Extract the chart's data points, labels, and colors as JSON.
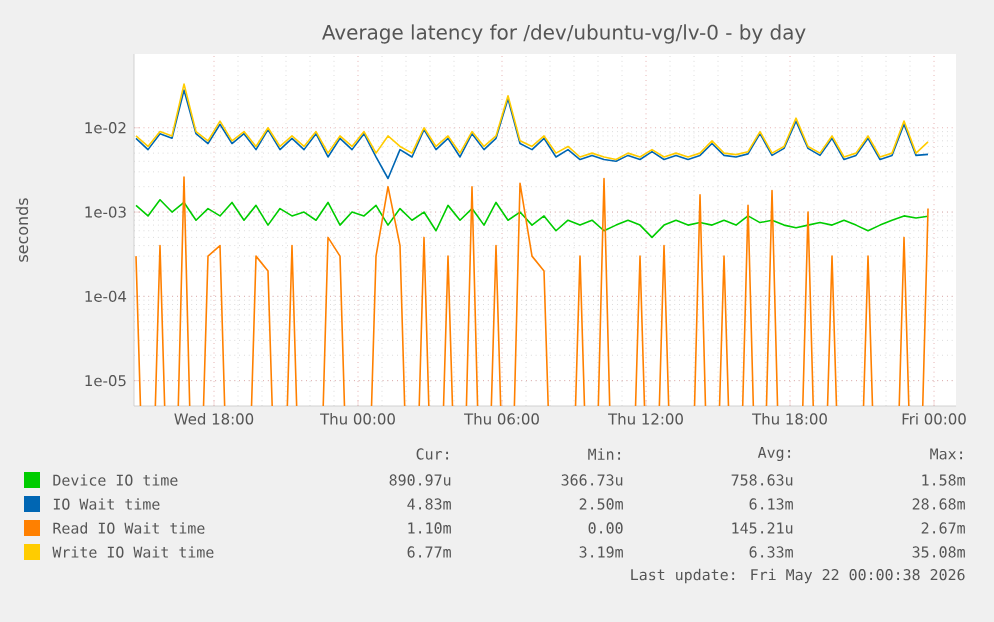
{
  "chart_data": {
    "type": "line",
    "title": "Average latency for /dev/ubuntu-vg/lv-0 - by day",
    "ylabel": "seconds",
    "log": "y",
    "grid": true,
    "legend": "bottom",
    "xlim": [
      "2026-05-20T14:40",
      "2026-05-22T00:55"
    ],
    "ylim": [
      5e-06,
      0.075
    ],
    "xticks": [
      {
        "value": "2026-05-20T18:00",
        "label": "Wed 18:00"
      },
      {
        "value": "2026-05-21T00:00",
        "label": "Thu 00:00"
      },
      {
        "value": "2026-05-21T06:00",
        "label": "Thu 06:00"
      },
      {
        "value": "2026-05-21T12:00",
        "label": "Thu 12:00"
      },
      {
        "value": "2026-05-21T18:00",
        "label": "Thu 18:00"
      },
      {
        "value": "2026-05-22T00:00",
        "label": "Fri 00:00"
      }
    ],
    "yticks": [
      {
        "value": 1e-05,
        "label": "1e-05"
      },
      {
        "value": 0.0001,
        "label": "1e-04"
      },
      {
        "value": 0.001,
        "label": "1e-03"
      },
      {
        "value": 0.01,
        "label": "1e-02"
      }
    ],
    "x": [
      "2026-05-20T14:45",
      "2026-05-20T15:15",
      "2026-05-20T15:45",
      "2026-05-20T16:15",
      "2026-05-20T16:45",
      "2026-05-20T17:15",
      "2026-05-20T17:45",
      "2026-05-20T18:15",
      "2026-05-20T18:45",
      "2026-05-20T19:15",
      "2026-05-20T19:45",
      "2026-05-20T20:15",
      "2026-05-20T20:45",
      "2026-05-20T21:15",
      "2026-05-20T21:45",
      "2026-05-20T22:15",
      "2026-05-20T22:45",
      "2026-05-20T23:15",
      "2026-05-20T23:45",
      "2026-05-21T00:15",
      "2026-05-21T00:45",
      "2026-05-21T01:15",
      "2026-05-21T01:45",
      "2026-05-21T02:15",
      "2026-05-21T02:45",
      "2026-05-21T03:15",
      "2026-05-21T03:45",
      "2026-05-21T04:15",
      "2026-05-21T04:45",
      "2026-05-21T05:15",
      "2026-05-21T05:45",
      "2026-05-21T06:15",
      "2026-05-21T06:45",
      "2026-05-21T07:15",
      "2026-05-21T07:45",
      "2026-05-21T08:15",
      "2026-05-21T08:45",
      "2026-05-21T09:15",
      "2026-05-21T09:45",
      "2026-05-21T10:15",
      "2026-05-21T10:45",
      "2026-05-21T11:15",
      "2026-05-21T11:45",
      "2026-05-21T12:15",
      "2026-05-21T12:45",
      "2026-05-21T13:15",
      "2026-05-21T13:45",
      "2026-05-21T14:15",
      "2026-05-21T14:45",
      "2026-05-21T15:15",
      "2026-05-21T15:45",
      "2026-05-21T16:15",
      "2026-05-21T16:45",
      "2026-05-21T17:15",
      "2026-05-21T17:45",
      "2026-05-21T18:15",
      "2026-05-21T18:45",
      "2026-05-21T19:15",
      "2026-05-21T19:45",
      "2026-05-21T20:15",
      "2026-05-21T20:45",
      "2026-05-21T21:15",
      "2026-05-21T21:45",
      "2026-05-21T22:15",
      "2026-05-21T22:45",
      "2026-05-21T23:15",
      "2026-05-21T23:45"
    ],
    "series": [
      {
        "name": "Device IO time",
        "color": "#00cc00",
        "values": [
          0.0012,
          0.0009,
          0.0014,
          0.001,
          0.0013,
          0.0008,
          0.0011,
          0.0009,
          0.0013,
          0.0008,
          0.0012,
          0.0007,
          0.0011,
          0.0009,
          0.001,
          0.0008,
          0.0013,
          0.0007,
          0.001,
          0.0009,
          0.0012,
          0.0007,
          0.0011,
          0.0008,
          0.001,
          0.0006,
          0.0012,
          0.0008,
          0.0011,
          0.0007,
          0.0013,
          0.0008,
          0.001,
          0.0007,
          0.0009,
          0.0006,
          0.0008,
          0.0007,
          0.0008,
          0.0006,
          0.0007,
          0.0008,
          0.0007,
          0.0005,
          0.0007,
          0.0008,
          0.0007,
          0.00075,
          0.0007,
          0.0008,
          0.0007,
          0.0009,
          0.00075,
          0.0008,
          0.0007,
          0.00065,
          0.0007,
          0.00075,
          0.0007,
          0.0008,
          0.0007,
          0.0006,
          0.0007,
          0.0008,
          0.0009,
          0.00085,
          0.00089
        ]
      },
      {
        "name": "IO Wait time",
        "color": "#0066b3",
        "values": [
          0.0075,
          0.0055,
          0.0085,
          0.0075,
          0.028,
          0.0085,
          0.0065,
          0.011,
          0.0065,
          0.0085,
          0.0055,
          0.0095,
          0.0055,
          0.0075,
          0.0055,
          0.0085,
          0.0045,
          0.0075,
          0.0055,
          0.0085,
          0.0045,
          0.0025,
          0.0055,
          0.0045,
          0.0095,
          0.0055,
          0.0075,
          0.0045,
          0.0085,
          0.0055,
          0.0075,
          0.022,
          0.0065,
          0.0055,
          0.0075,
          0.0045,
          0.0055,
          0.0042,
          0.0047,
          0.0042,
          0.004,
          0.0047,
          0.0042,
          0.0052,
          0.0042,
          0.0047,
          0.0042,
          0.0047,
          0.0065,
          0.0047,
          0.0045,
          0.0049,
          0.0085,
          0.0047,
          0.0057,
          0.012,
          0.0057,
          0.0047,
          0.0075,
          0.0042,
          0.0047,
          0.0075,
          0.0042,
          0.0047,
          0.011,
          0.0047,
          0.00483
        ]
      },
      {
        "name": "Read IO Wait time",
        "color": "#ff8000",
        "values": [
          0.0003,
          null,
          0.0004,
          null,
          0.0026,
          null,
          0.0003,
          0.0004,
          null,
          null,
          0.0003,
          0.0002,
          null,
          0.0004,
          null,
          null,
          0.0005,
          0.0003,
          null,
          null,
          0.0003,
          0.002,
          0.0004,
          null,
          0.0005,
          null,
          0.0003,
          null,
          0.002,
          null,
          0.0004,
          null,
          0.0022,
          0.0003,
          0.0002,
          null,
          null,
          0.0003,
          null,
          0.0025,
          null,
          null,
          0.0003,
          null,
          0.0004,
          null,
          null,
          0.0016,
          null,
          0.0003,
          null,
          0.0012,
          null,
          0.0018,
          null,
          null,
          0.001,
          null,
          0.0003,
          null,
          null,
          0.0003,
          null,
          null,
          0.0005,
          null,
          0.0011
        ]
      },
      {
        "name": "Write IO Wait time",
        "color": "#ffcc00",
        "values": [
          0.008,
          0.006,
          0.009,
          0.008,
          0.033,
          0.009,
          0.007,
          0.012,
          0.007,
          0.009,
          0.006,
          0.01,
          0.006,
          0.008,
          0.006,
          0.009,
          0.005,
          0.008,
          0.006,
          0.009,
          0.005,
          0.008,
          0.006,
          0.005,
          0.01,
          0.006,
          0.008,
          0.005,
          0.009,
          0.006,
          0.008,
          0.024,
          0.007,
          0.006,
          0.008,
          0.005,
          0.006,
          0.0045,
          0.005,
          0.0045,
          0.0042,
          0.005,
          0.0045,
          0.0055,
          0.0045,
          0.005,
          0.0045,
          0.005,
          0.007,
          0.005,
          0.0048,
          0.0052,
          0.009,
          0.005,
          0.006,
          0.013,
          0.006,
          0.005,
          0.008,
          0.0045,
          0.005,
          0.008,
          0.0045,
          0.005,
          0.012,
          0.005,
          0.0068
        ]
      }
    ],
    "annotations": [
      "Cur:",
      "Min:",
      "Avg:",
      "Max:",
      "890.97u",
      "366.73u",
      "758.63u",
      "1.58m",
      "4.83m",
      "2.50m",
      "6.13m",
      "28.68m",
      "1.10m",
      "0.00",
      "145.21u",
      "2.67m",
      "6.77m",
      "3.19m",
      "6.33m",
      "35.08m",
      "Last update: Fri May 22 00:00:38 2026"
    ]
  }
}
